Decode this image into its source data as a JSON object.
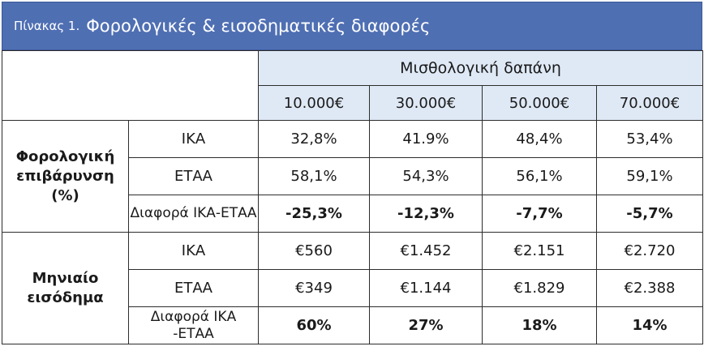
{
  "title": {
    "prefix": "Πίνακας 1.",
    "main": "Φορολογικές & εισοδηματικές διαφορές"
  },
  "header": {
    "group_label": "Μισθολογική δαπάνη",
    "columns": [
      "10.000€",
      "30.000€",
      "50.000€",
      "70.000€"
    ]
  },
  "sections": [
    {
      "category": "Φορολογική επιβάρυνση (%)",
      "rows": [
        {
          "label": "ΙΚΑ",
          "values": [
            "32,8%",
            "41.9%",
            "48,4%",
            "53,4%"
          ]
        },
        {
          "label": "ΕΤΑΑ",
          "values": [
            "58,1%",
            "54,3%",
            "56,1%",
            "59,1%"
          ]
        },
        {
          "label": "Διαφορά ΙΚΑ-ΕΤΑΑ",
          "values": [
            "-25,3%",
            "-12,3%",
            "-7,7%",
            "-5,7%"
          ]
        }
      ]
    },
    {
      "category": "Μηνιαίο εισόδημα",
      "rows": [
        {
          "label": "ΙΚΑ",
          "values": [
            "€560",
            "€1.452",
            "€2.151",
            "€2.720"
          ]
        },
        {
          "label": "ΕΤΑΑ",
          "values": [
            "€349",
            "€1.144",
            "€1.829",
            "€2.388"
          ]
        },
        {
          "label": "Διαφορά ΙΚΑ -ΕΤΑΑ",
          "values": [
            "60%",
            "27%",
            "18%",
            "14%"
          ]
        }
      ]
    }
  ],
  "colors": {
    "title_bg": "#4f6fb3",
    "header_bg": "#dfe9f6"
  }
}
